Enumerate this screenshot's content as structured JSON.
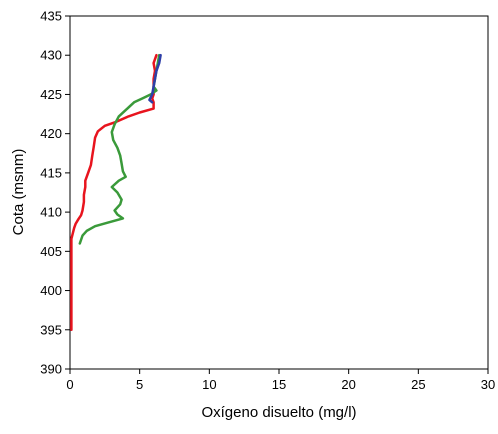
{
  "chart_data": {
    "type": "line",
    "title": "",
    "xlabel": "Oxígeno disuelto (mg/l)",
    "ylabel": "Cota (msnm)",
    "xlim": [
      0,
      30
    ],
    "ylim": [
      390,
      435
    ],
    "x_ticks": [
      0,
      5,
      10,
      15,
      20,
      25,
      30
    ],
    "y_ticks": [
      390,
      395,
      400,
      405,
      410,
      415,
      420,
      425,
      430,
      435
    ],
    "grid": false,
    "legend": "none",
    "series": [
      {
        "color": "#e8141e",
        "points": [
          [
            6.2,
            430
          ],
          [
            6.0,
            429
          ],
          [
            6.1,
            428
          ],
          [
            6.0,
            427
          ],
          [
            6.0,
            426
          ],
          [
            6.0,
            425
          ],
          [
            5.9,
            424.5
          ],
          [
            6.0,
            424
          ],
          [
            6.0,
            423.2
          ],
          [
            5.0,
            422.7
          ],
          [
            4.2,
            422.2
          ],
          [
            3.3,
            421.5
          ],
          [
            2.5,
            421
          ],
          [
            2.0,
            420.3
          ],
          [
            1.8,
            419.5
          ],
          [
            1.7,
            418.3
          ],
          [
            1.6,
            417.2
          ],
          [
            1.5,
            416
          ],
          [
            1.3,
            415
          ],
          [
            1.1,
            414
          ],
          [
            1.1,
            413.2
          ],
          [
            1.0,
            412.2
          ],
          [
            1.0,
            411.3
          ],
          [
            0.9,
            410.2
          ],
          [
            0.8,
            409.6
          ],
          [
            0.6,
            409.1
          ],
          [
            0.4,
            408.5
          ],
          [
            0.3,
            408
          ],
          [
            0.2,
            407.3
          ],
          [
            0.1,
            406.6
          ],
          [
            0.1,
            405
          ],
          [
            0.1,
            395
          ]
        ]
      },
      {
        "color": "#3a9a3a",
        "points": [
          [
            6.4,
            430
          ],
          [
            6.3,
            429
          ],
          [
            6.2,
            428
          ],
          [
            6.1,
            427
          ],
          [
            6.0,
            426
          ],
          [
            6.2,
            425.5
          ],
          [
            5.8,
            425
          ],
          [
            5.2,
            424.5
          ],
          [
            4.6,
            424
          ],
          [
            4.0,
            423
          ],
          [
            3.5,
            422.2
          ],
          [
            3.2,
            421.2
          ],
          [
            3.0,
            420.2
          ],
          [
            3.1,
            419.2
          ],
          [
            3.4,
            418.2
          ],
          [
            3.6,
            417.2
          ],
          [
            3.7,
            416.2
          ],
          [
            3.8,
            415.2
          ],
          [
            4.0,
            414.5
          ],
          [
            3.5,
            414
          ],
          [
            3.0,
            413.2
          ],
          [
            3.4,
            412.5
          ],
          [
            3.7,
            411.6
          ],
          [
            3.6,
            411
          ],
          [
            3.2,
            410.2
          ],
          [
            3.4,
            409.7
          ],
          [
            3.8,
            409.2
          ],
          [
            2.6,
            408.6
          ],
          [
            1.8,
            408.2
          ],
          [
            1.2,
            407.6
          ],
          [
            0.9,
            407
          ],
          [
            0.7,
            406
          ]
        ]
      },
      {
        "color": "#2e3fa8",
        "points": [
          [
            6.5,
            430
          ],
          [
            6.4,
            429
          ],
          [
            6.2,
            428
          ],
          [
            6.1,
            427
          ],
          [
            6.0,
            426
          ],
          [
            5.9,
            425
          ],
          [
            5.7,
            424.3
          ],
          [
            5.9,
            424
          ]
        ]
      }
    ]
  }
}
